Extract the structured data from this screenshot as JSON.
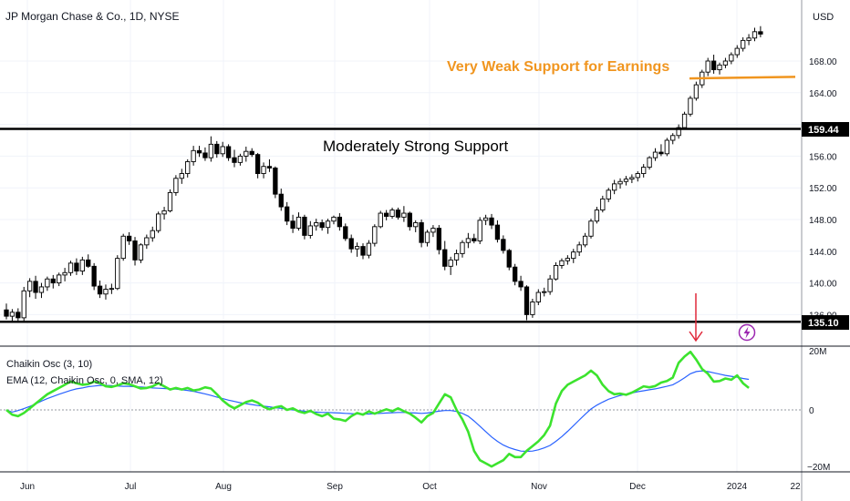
{
  "header": {
    "title": "JP Morgan Chase & Co., 1D, NYSE",
    "currency": "USD"
  },
  "chart_data": {
    "type": "candlestick",
    "price_axis": {
      "ticks": [
        136.0,
        140.0,
        144.0,
        148.0,
        152.0,
        156.0,
        160.0,
        164.0,
        168.0
      ],
      "tick_labels": [
        "136.00",
        "140.00",
        "144.00",
        "148.00",
        "152.00",
        "156.00",
        "",
        "164.00",
        "168.00"
      ]
    },
    "time_axis": {
      "labels": [
        "Jun",
        "Jul",
        "Aug",
        "Sep",
        "Oct",
        "Nov",
        "Dec",
        "2024",
        "22"
      ]
    },
    "candles": [
      [
        136.6,
        137.4,
        135.4,
        135.8
      ],
      [
        135.8,
        136.7,
        135.0,
        136.3
      ],
      [
        136.3,
        136.8,
        135.2,
        135.6
      ],
      [
        135.6,
        139.5,
        135.2,
        139.0
      ],
      [
        139.0,
        140.6,
        138.2,
        140.2
      ],
      [
        140.2,
        140.9,
        138.0,
        138.8
      ],
      [
        138.8,
        140.0,
        138.1,
        139.5
      ],
      [
        139.5,
        140.8,
        139.0,
        140.5
      ],
      [
        140.5,
        141.0,
        139.3,
        140.0
      ],
      [
        140.0,
        141.3,
        139.6,
        141.0
      ],
      [
        141.0,
        141.9,
        140.2,
        141.3
      ],
      [
        141.3,
        142.8,
        140.9,
        142.5
      ],
      [
        142.5,
        143.1,
        141.0,
        141.5
      ],
      [
        141.5,
        143.3,
        141.0,
        142.9
      ],
      [
        142.9,
        143.6,
        141.9,
        142.1
      ],
      [
        142.1,
        142.5,
        139.1,
        139.6
      ],
      [
        139.6,
        140.3,
        138.1,
        138.6
      ],
      [
        138.6,
        139.8,
        137.9,
        139.2
      ],
      [
        139.2,
        139.9,
        138.6,
        139.3
      ],
      [
        139.3,
        143.5,
        139.1,
        143.1
      ],
      [
        143.1,
        146.2,
        142.8,
        145.9
      ],
      [
        145.9,
        146.4,
        144.8,
        145.3
      ],
      [
        145.3,
        145.8,
        142.2,
        142.9
      ],
      [
        142.9,
        145.0,
        142.5,
        144.8
      ],
      [
        144.8,
        146.1,
        144.3,
        145.7
      ],
      [
        145.7,
        147.1,
        145.2,
        146.6
      ],
      [
        146.6,
        149.0,
        146.3,
        148.7
      ],
      [
        148.7,
        149.6,
        148.0,
        149.1
      ],
      [
        149.1,
        151.8,
        148.9,
        151.4
      ],
      [
        151.4,
        153.6,
        151.0,
        153.2
      ],
      [
        153.2,
        154.4,
        152.5,
        153.8
      ],
      [
        153.8,
        155.6,
        153.3,
        155.3
      ],
      [
        155.3,
        157.3,
        154.8,
        156.7
      ],
      [
        156.7,
        157.3,
        155.9,
        156.4
      ],
      [
        156.4,
        157.1,
        155.4,
        155.8
      ],
      [
        155.8,
        158.5,
        155.3,
        157.5
      ],
      [
        157.5,
        157.9,
        155.8,
        156.3
      ],
      [
        156.3,
        157.8,
        155.9,
        157.2
      ],
      [
        157.2,
        157.5,
        155.4,
        155.8
      ],
      [
        155.8,
        156.8,
        154.6,
        155.2
      ],
      [
        155.2,
        156.3,
        154.8,
        156.0
      ],
      [
        156.0,
        157.2,
        155.3,
        156.6
      ],
      [
        156.6,
        157.0,
        155.9,
        156.2
      ],
      [
        156.2,
        156.4,
        153.2,
        153.8
      ],
      [
        153.8,
        155.2,
        153.2,
        154.7
      ],
      [
        154.7,
        155.6,
        154.0,
        154.5
      ],
      [
        154.5,
        154.7,
        150.7,
        151.2
      ],
      [
        151.2,
        151.9,
        149.1,
        149.6
      ],
      [
        149.6,
        150.2,
        147.3,
        147.8
      ],
      [
        147.8,
        148.6,
        146.3,
        146.9
      ],
      [
        146.9,
        148.9,
        146.6,
        148.3
      ],
      [
        148.3,
        148.6,
        145.5,
        146.0
      ],
      [
        146.0,
        147.8,
        145.6,
        147.2
      ],
      [
        147.2,
        148.1,
        146.6,
        147.6
      ],
      [
        147.6,
        148.0,
        146.6,
        147.0
      ],
      [
        147.0,
        148.1,
        146.2,
        147.8
      ],
      [
        147.8,
        148.5,
        147.4,
        148.3
      ],
      [
        148.3,
        148.8,
        146.6,
        147.1
      ],
      [
        147.1,
        147.5,
        145.3,
        145.6
      ],
      [
        145.6,
        146.1,
        143.8,
        144.3
      ],
      [
        144.3,
        145.1,
        143.3,
        144.6
      ],
      [
        144.6,
        145.0,
        143.0,
        143.5
      ],
      [
        143.5,
        145.4,
        143.1,
        145.0
      ],
      [
        145.0,
        147.4,
        144.6,
        147.1
      ],
      [
        147.1,
        149.1,
        146.9,
        148.8
      ],
      [
        148.8,
        149.2,
        147.9,
        148.4
      ],
      [
        148.4,
        149.5,
        148.1,
        149.2
      ],
      [
        149.2,
        149.5,
        148.0,
        148.3
      ],
      [
        148.3,
        149.7,
        147.7,
        148.8
      ],
      [
        148.8,
        149.0,
        146.6,
        147.1
      ],
      [
        147.1,
        147.9,
        146.4,
        147.6
      ],
      [
        147.6,
        148.0,
        144.5,
        145.1
      ],
      [
        145.1,
        146.7,
        144.6,
        146.4
      ],
      [
        146.4,
        147.3,
        145.8,
        146.9
      ],
      [
        146.9,
        147.3,
        143.6,
        144.2
      ],
      [
        144.2,
        145.3,
        141.6,
        142.1
      ],
      [
        142.1,
        143.3,
        141.0,
        142.9
      ],
      [
        142.9,
        144.2,
        142.2,
        143.7
      ],
      [
        143.7,
        145.4,
        143.2,
        145.1
      ],
      [
        145.1,
        146.3,
        144.4,
        145.6
      ],
      [
        145.6,
        146.2,
        145.0,
        145.3
      ],
      [
        145.3,
        148.3,
        144.9,
        147.9
      ],
      [
        147.9,
        148.6,
        147.3,
        148.2
      ],
      [
        148.2,
        148.7,
        146.8,
        147.3
      ],
      [
        147.3,
        147.9,
        145.1,
        145.5
      ],
      [
        145.5,
        146.0,
        143.7,
        144.1
      ],
      [
        144.1,
        144.3,
        141.6,
        142.0
      ],
      [
        142.0,
        142.4,
        139.7,
        140.2
      ],
      [
        140.2,
        140.9,
        139.0,
        139.5
      ],
      [
        139.5,
        139.7,
        135.3,
        136.0
      ],
      [
        136.0,
        138.0,
        135.6,
        137.6
      ],
      [
        137.6,
        139.2,
        137.2,
        138.8
      ],
      [
        138.8,
        139.4,
        138.3,
        138.9
      ],
      [
        138.9,
        141.0,
        138.5,
        140.5
      ],
      [
        140.5,
        142.6,
        140.3,
        142.2
      ],
      [
        142.2,
        143.1,
        141.8,
        142.8
      ],
      [
        142.8,
        143.5,
        142.3,
        143.1
      ],
      [
        143.1,
        144.3,
        142.5,
        143.9
      ],
      [
        143.9,
        145.2,
        143.4,
        144.8
      ],
      [
        144.8,
        146.3,
        144.5,
        145.9
      ],
      [
        145.9,
        148.1,
        145.6,
        147.8
      ],
      [
        147.8,
        149.6,
        147.5,
        149.2
      ],
      [
        149.2,
        151.0,
        148.9,
        150.6
      ],
      [
        150.6,
        152.0,
        150.2,
        151.7
      ],
      [
        151.7,
        153.0,
        151.2,
        152.5
      ],
      [
        152.5,
        153.2,
        151.9,
        152.8
      ],
      [
        152.8,
        153.5,
        152.3,
        153.1
      ],
      [
        153.1,
        153.7,
        152.6,
        153.3
      ],
      [
        153.3,
        154.1,
        152.8,
        153.8
      ],
      [
        153.8,
        155.0,
        153.3,
        154.6
      ],
      [
        154.6,
        156.0,
        154.3,
        155.8
      ],
      [
        155.8,
        157.0,
        155.4,
        156.5
      ],
      [
        156.5,
        157.5,
        156.0,
        156.3
      ],
      [
        156.3,
        158.3,
        156.0,
        158.0
      ],
      [
        158.0,
        158.9,
        157.5,
        158.6
      ],
      [
        158.6,
        160.0,
        158.2,
        159.6
      ],
      [
        159.6,
        161.6,
        159.4,
        161.3
      ],
      [
        161.3,
        163.6,
        161.0,
        163.3
      ],
      [
        163.3,
        165.4,
        163.0,
        165.0
      ],
      [
        165.0,
        166.9,
        164.6,
        166.6
      ],
      [
        166.6,
        168.4,
        166.1,
        168.0
      ],
      [
        168.0,
        168.8,
        166.4,
        166.9
      ],
      [
        166.9,
        167.8,
        166.3,
        167.5
      ],
      [
        167.5,
        168.4,
        167.1,
        168.0
      ],
      [
        168.0,
        169.1,
        167.6,
        168.8
      ],
      [
        168.8,
        170.0,
        168.4,
        169.6
      ],
      [
        169.6,
        171.0,
        169.2,
        170.6
      ],
      [
        170.6,
        171.4,
        170.0,
        170.9
      ],
      [
        170.9,
        172.2,
        170.5,
        171.7
      ],
      [
        171.7,
        172.4,
        171.0,
        171.4
      ]
    ],
    "support_lines": [
      {
        "label": "Moderately Strong Support",
        "price": 159.44,
        "price_label": "159.44",
        "color": "#000000"
      },
      {
        "label": "Very Weak Support for Earnings",
        "price": 165.8,
        "color": "#f0951f"
      },
      {
        "price": 135.1,
        "price_label": "135.10",
        "color": "#000000"
      }
    ],
    "oscillator": {
      "legend": [
        "Chaikin Osc (3, 10)",
        "EMA (12, Chaikin Osc, 0, SMA, 12)"
      ],
      "axis_labels": [
        "20M",
        "0",
        "−20M"
      ],
      "range": [
        -20,
        20
      ],
      "chaikin": [
        0,
        -1.5,
        -2,
        -1,
        0.5,
        2,
        3.5,
        5,
        6,
        7,
        8,
        9,
        8.5,
        8,
        8.2,
        9,
        8.5,
        7.5,
        7.3,
        7.8,
        8.5,
        8.2,
        7.5,
        6.8,
        7,
        7.5,
        8.5,
        7.5,
        6.5,
        7,
        6.5,
        7,
        6.2,
        6.5,
        7.2,
        6.8,
        5,
        3,
        1.5,
        0.5,
        1.5,
        2.5,
        3,
        2.3,
        1,
        0.2,
        0.8,
        1.2,
        0,
        0.5,
        -0.5,
        -1,
        -0.3,
        -1.3,
        -2,
        -1.2,
        -2.8,
        -3,
        -3.5,
        -2,
        -1,
        -1.5,
        -0.5,
        -1.2,
        -0.5,
        0.2,
        -0.4,
        0.5,
        -0.4,
        -1.2,
        -2.5,
        -4,
        -2,
        -1,
        2,
        5,
        4,
        0,
        -3,
        -7,
        -13,
        -16,
        -17,
        -18,
        -17,
        -16,
        -14,
        -15,
        -15,
        -13,
        -11.5,
        -10,
        -8,
        -5,
        2,
        6,
        8,
        9,
        10,
        11,
        12.5,
        11,
        8,
        6,
        5,
        5.2,
        4.8,
        5.5,
        6.5,
        7.5,
        7.2,
        7.6,
        8.7,
        9.2,
        10.3,
        15,
        17,
        18.5,
        16,
        13,
        11.5,
        9,
        9.2,
        10,
        9.6,
        11,
        8.5,
        7
      ],
      "ema": [
        0,
        -0.7,
        -0.2,
        0.4,
        1.1,
        1.9,
        2.8,
        3.6,
        4.3,
        5,
        5.6,
        6.2,
        6.7,
        7,
        7.4,
        7.6,
        7.8,
        7.8,
        7.7,
        7.6,
        7.5,
        7.5,
        7.4,
        7.3,
        7.2,
        7,
        6.9,
        6.8,
        6.7,
        6.6,
        6.4,
        6.2,
        5.9,
        5.5,
        5.1,
        4.6,
        4.1,
        3.6,
        3.1,
        2.7,
        2.3,
        2,
        1.7,
        1.4,
        1.2,
        1,
        0.7,
        0.5,
        0.2,
        0,
        -0.2,
        -0.4,
        -0.6,
        -0.7,
        -0.8,
        -0.8,
        -0.9,
        -1,
        -1.1,
        -1.2,
        -1.3,
        -1.3,
        -1.3,
        -1.2,
        -1.1,
        -1,
        -0.9,
        -0.8,
        -0.8,
        -0.9,
        -1,
        -1.1,
        -1,
        -0.7,
        -0.4,
        -0.2,
        -0.2,
        -0.5,
        -1.1,
        -2,
        -3.5,
        -5.2,
        -6.9,
        -8.6,
        -10,
        -11.2,
        -12,
        -12.6,
        -13.1,
        -13.2,
        -13.1,
        -12.7,
        -12.1,
        -11.3,
        -10,
        -8.5,
        -6.8,
        -5,
        -3.2,
        -1.4,
        0.3,
        1.5,
        2.5,
        3.4,
        4,
        4.6,
        5,
        5.4,
        5.8,
        6.1,
        6.4,
        6.7,
        7.1,
        7.5,
        8,
        9,
        10.2,
        11.5,
        12.2,
        12.4,
        12.2,
        11.8,
        11.4,
        11,
        10.7,
        10.4,
        10,
        9.7
      ]
    }
  },
  "icons": {
    "events": "lightning-icon",
    "arrow": "arrow-down-icon"
  }
}
